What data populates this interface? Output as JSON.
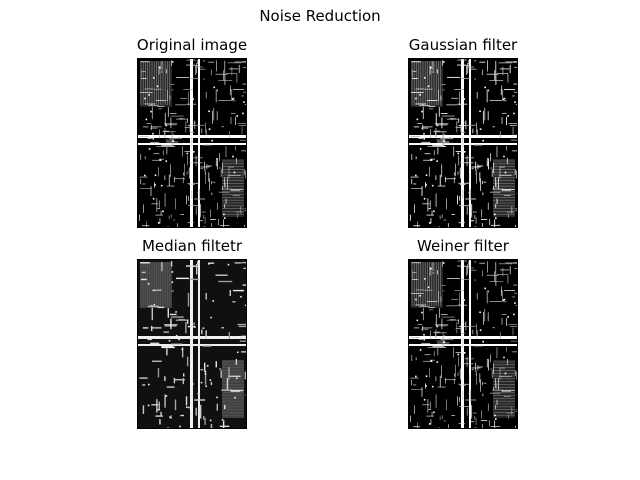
{
  "figure": {
    "title": "Noise Reduction",
    "panels": [
      {
        "title": "Original image",
        "variant": "original"
      },
      {
        "title": "Gaussian filter",
        "variant": "gaussian"
      },
      {
        "title": "Median filtetr",
        "variant": "median"
      },
      {
        "title": "Weiner filter",
        "variant": "weiner"
      }
    ]
  },
  "colors": {
    "background": "#ffffff",
    "image_dark": "#000000",
    "image_light": "#ffffff"
  }
}
